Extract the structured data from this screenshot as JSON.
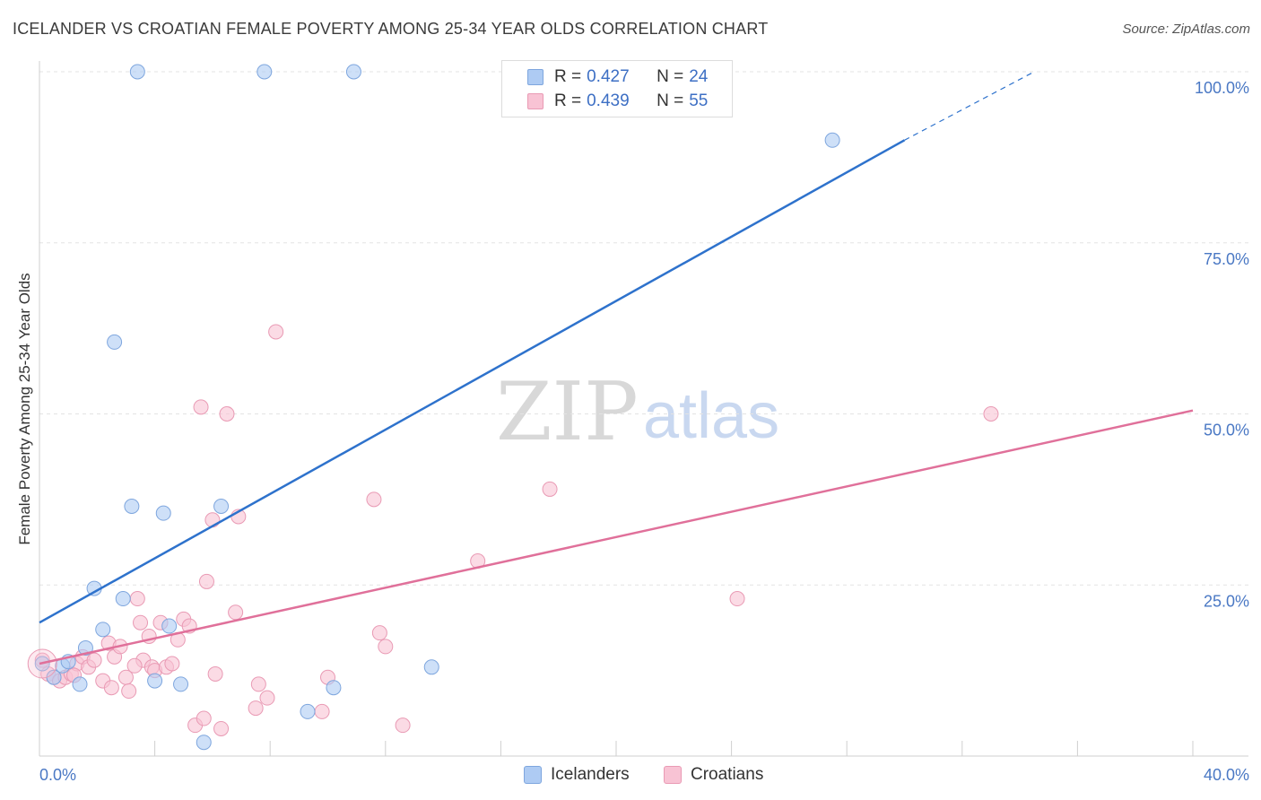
{
  "header": {
    "title": "ICELANDER VS CROATIAN FEMALE POVERTY AMONG 25-34 YEAR OLDS CORRELATION CHART",
    "source": "Source: ZipAtlas.com"
  },
  "watermark": {
    "zip": "ZIP",
    "atlas": "atlas"
  },
  "legend": {
    "rows": [
      {
        "r_label": "R =",
        "r_value": "0.427",
        "n_label": "N =",
        "n_value": "24"
      },
      {
        "r_label": "R =",
        "r_value": "0.439",
        "n_label": "N =",
        "n_value": "55"
      }
    ],
    "bottom": [
      "Icelanders",
      "Croatians"
    ]
  },
  "colors": {
    "icelanders_fill": "#aecbf3",
    "icelanders_stroke": "#7ea6de",
    "icelanders_line": "#2e72cc",
    "croatians_fill": "#f8c3d4",
    "croatians_stroke": "#e99ab4",
    "croatians_line": "#e0709a",
    "axis_label": "#4a78c4",
    "grid": "#e3e3e3"
  },
  "chart_data": {
    "type": "scatter",
    "title": "ICELANDER VS CROATIAN FEMALE POVERTY AMONG 25-34 YEAR OLDS CORRELATION CHART",
    "xlabel": "",
    "ylabel": "Female Poverty Among 25-34 Year Olds",
    "xlim": [
      0,
      40
    ],
    "ylim": [
      0,
      100
    ],
    "x_tick_labels": [
      "0.0%",
      "40.0%"
    ],
    "y_ticks": [
      25,
      50,
      75,
      100
    ],
    "y_tick_labels": [
      "25.0%",
      "50.0%",
      "75.0%",
      "100.0%"
    ],
    "grid": true,
    "legend_position": "top-center",
    "series": [
      {
        "name": "Icelanders",
        "r": 0.427,
        "n": 24,
        "points": [
          [
            0.1,
            13.5
          ],
          [
            0.5,
            11.5
          ],
          [
            0.8,
            13.2
          ],
          [
            1.0,
            13.8
          ],
          [
            1.4,
            10.5
          ],
          [
            1.6,
            15.8
          ],
          [
            1.9,
            24.5
          ],
          [
            2.2,
            18.5
          ],
          [
            2.6,
            60.5
          ],
          [
            2.9,
            23.0
          ],
          [
            3.2,
            36.5
          ],
          [
            3.4,
            100
          ],
          [
            4.0,
            11.0
          ],
          [
            4.3,
            35.5
          ],
          [
            4.5,
            19.0
          ],
          [
            4.9,
            10.5
          ],
          [
            5.7,
            2.0
          ],
          [
            6.3,
            36.5
          ],
          [
            7.8,
            100
          ],
          [
            9.3,
            6.5
          ],
          [
            10.2,
            10.0
          ],
          [
            10.9,
            100
          ],
          [
            13.6,
            13.0
          ],
          [
            27.5,
            90
          ]
        ],
        "trend": {
          "x": [
            0,
            30,
            34.5
          ],
          "y": [
            19.5,
            90,
            100
          ],
          "dashed_from_x": 30
        }
      },
      {
        "name": "Croatians",
        "r": 0.439,
        "n": 55,
        "points": [
          [
            0.1,
            14.0
          ],
          [
            0.3,
            12.0
          ],
          [
            0.5,
            11.5
          ],
          [
            0.7,
            11.0
          ],
          [
            0.9,
            11.5
          ],
          [
            1.1,
            12.0
          ],
          [
            1.3,
            13.5
          ],
          [
            1.5,
            14.5
          ],
          [
            1.7,
            13.0
          ],
          [
            1.9,
            14.0
          ],
          [
            2.2,
            11.0
          ],
          [
            2.4,
            16.5
          ],
          [
            2.5,
            10.0
          ],
          [
            2.6,
            14.5
          ],
          [
            2.8,
            16.0
          ],
          [
            3.0,
            11.5
          ],
          [
            3.1,
            9.5
          ],
          [
            3.4,
            23.0
          ],
          [
            3.5,
            19.5
          ],
          [
            3.6,
            14.0
          ],
          [
            3.8,
            17.5
          ],
          [
            3.9,
            13.0
          ],
          [
            4.0,
            12.5
          ],
          [
            4.2,
            19.5
          ],
          [
            4.4,
            13.0
          ],
          [
            4.6,
            13.5
          ],
          [
            4.8,
            17.0
          ],
          [
            5.0,
            20.0
          ],
          [
            5.2,
            19.0
          ],
          [
            5.4,
            4.5
          ],
          [
            5.6,
            51.0
          ],
          [
            5.7,
            5.5
          ],
          [
            5.8,
            25.5
          ],
          [
            6.0,
            34.5
          ],
          [
            6.1,
            12.0
          ],
          [
            6.3,
            4.0
          ],
          [
            6.5,
            50.0
          ],
          [
            6.8,
            21.0
          ],
          [
            6.9,
            35.0
          ],
          [
            7.5,
            7.0
          ],
          [
            7.6,
            10.5
          ],
          [
            7.9,
            8.5
          ],
          [
            8.2,
            62.0
          ],
          [
            9.8,
            6.5
          ],
          [
            10.0,
            11.5
          ],
          [
            11.6,
            37.5
          ],
          [
            11.8,
            18.0
          ],
          [
            12.0,
            16.0
          ],
          [
            12.6,
            4.5
          ],
          [
            15.2,
            28.5
          ],
          [
            17.7,
            39.0
          ],
          [
            24.2,
            23.0
          ],
          [
            33.0,
            50.0
          ],
          [
            3.3,
            13.2
          ],
          [
            1.2,
            11.8
          ]
        ],
        "trend": {
          "x": [
            0,
            40
          ],
          "y": [
            13.5,
            50.5
          ]
        }
      }
    ]
  }
}
